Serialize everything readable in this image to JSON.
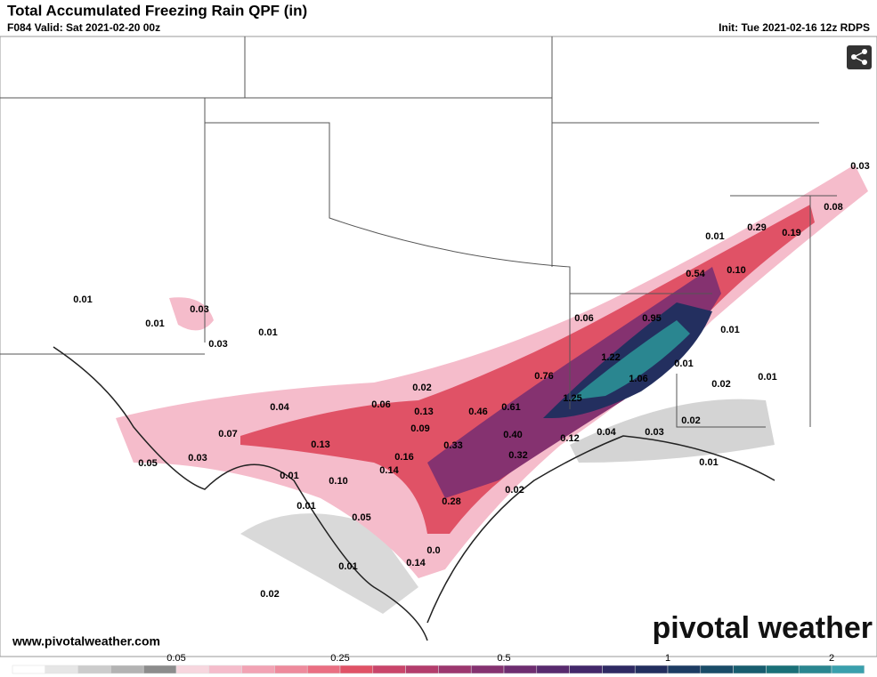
{
  "header": {
    "title": "Total Accumulated Freezing Rain QPF (in)",
    "valid": "F084 Valid: Sat 2021-02-20 00z",
    "init": "Init: Tue 2021-02-16 12z RDPS"
  },
  "map_labels": [
    "0.01",
    "0.01",
    "0.03",
    "0.03",
    "0.01",
    "0.04",
    "0.06",
    "0.02",
    "0.13",
    "0.09",
    "0.07",
    "0.13",
    "0.05",
    "0.03",
    "0.16",
    "0.14",
    "0.01",
    "0.10",
    "0.01",
    "0.05",
    "0.01",
    "0.14",
    "0.0",
    "0.02",
    "0.28",
    "0.02",
    "0.33",
    "0.32",
    "0.46",
    "0.61",
    "0.40",
    "0.76",
    "0.12",
    "1.25",
    "0.04",
    "0.03",
    "1.22",
    "1.06",
    "0.06",
    "0.95",
    "0.01",
    "0.01",
    "0.02",
    "0.01",
    "0.02",
    "0.01",
    "0.54",
    "0.10",
    "0.01",
    "0.29",
    "0.19",
    "0.08",
    "0.03"
  ],
  "footer": {
    "url": "www.pivotalweather.com",
    "logo": "pivotal weather"
  },
  "colorbar": {
    "labels": [
      "0.05",
      "0.25",
      "0.5",
      "1",
      "2"
    ],
    "colors": [
      "#ffffff",
      "#e6e6e6",
      "#cccccc",
      "#b3b3b3",
      "#8c8c8c",
      "#f7d6de",
      "#f5bccb",
      "#f2a3b4",
      "#ee8a9c",
      "#ea6f82",
      "#e05266",
      "#c9456a",
      "#b33d6c",
      "#9c376f",
      "#853270",
      "#6e2d70",
      "#582a6e",
      "#43286a",
      "#2f2a63",
      "#232f5f",
      "#1d3c63",
      "#1a4c68",
      "#185d6f",
      "#1a7078",
      "#2a8690",
      "#3aa0ad"
    ]
  }
}
